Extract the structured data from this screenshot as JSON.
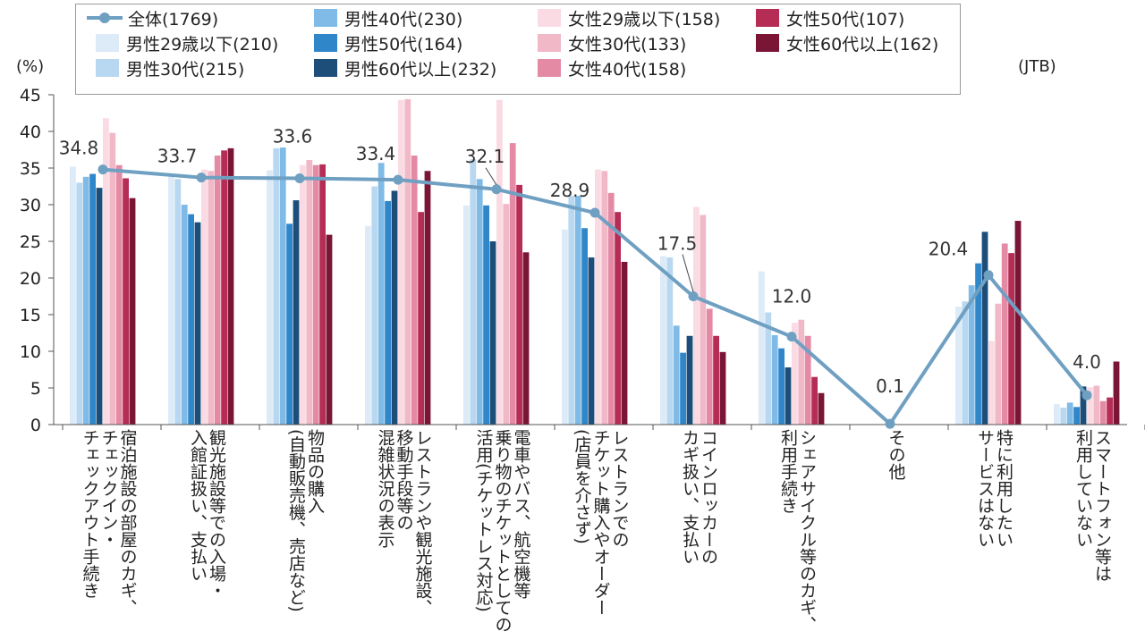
{
  "units": {
    "left": "(%)",
    "right": "(JTB)"
  },
  "legend": [
    {
      "label": "全体(1769)",
      "kind": "line",
      "color": "#6fa0c2"
    },
    {
      "label": "男性29歳以下(210)",
      "kind": "bar",
      "color": "#dcebf7"
    },
    {
      "label": "男性30代(215)",
      "kind": "bar",
      "color": "#b8d7f0"
    },
    {
      "label": "男性40代(230)",
      "kind": "bar",
      "color": "#7fbbe6"
    },
    {
      "label": "男性50代(164)",
      "kind": "bar",
      "color": "#2f86c9"
    },
    {
      "label": "男性60代以上(232)",
      "kind": "bar",
      "color": "#1c4e79"
    },
    {
      "label": "女性29歳以下(158)",
      "kind": "bar",
      "color": "#fadbe3"
    },
    {
      "label": "女性30代(133)",
      "kind": "bar",
      "color": "#f1b8c8"
    },
    {
      "label": "女性40代(158)",
      "kind": "bar",
      "color": "#e58aa5"
    },
    {
      "label": "女性50代(107)",
      "kind": "bar",
      "color": "#b52c55"
    },
    {
      "label": "女性60代以上(162)",
      "kind": "bar",
      "color": "#7b1535"
    }
  ],
  "chart_data": {
    "type": "bar",
    "ylim": [
      0,
      45
    ],
    "yticks": [
      "0",
      "5",
      "10",
      "15",
      "20",
      "25",
      "30",
      "35",
      "40",
      "45"
    ],
    "categories": [
      [
        "宿泊施設の部屋のカギ、",
        "チェックイン・",
        "チェックアウト手続き"
      ],
      [
        "観光施設等での入場・",
        "入館証扱い、支払い"
      ],
      [
        "物品の購入",
        "(自動販売機、売店など)"
      ],
      [
        "レストランや観光施設、",
        "移動手段等の",
        "混雑状況の表示"
      ],
      [
        "電車やバス、航空機等",
        "乗り物のチケットとしての",
        "活用(チケットレス対応)"
      ],
      [
        "レストランでの",
        "チケット購入やオーダー",
        "(店員を介さず)"
      ],
      [
        "コインロッカーの",
        "カギ扱い、支払い"
      ],
      [
        "シェアサイクル等のカギ、",
        "利用手続き"
      ],
      [
        "その他"
      ],
      [
        "特に利用したい",
        "サービスはない"
      ],
      [
        "スマートフォン等は",
        "利用していない"
      ]
    ],
    "series": [
      {
        "name": "男性29歳以下(210)",
        "values": [
          35.2,
          33.9,
          34.7,
          27.1,
          29.9,
          26.6,
          23.0,
          20.9,
          0,
          16.1,
          2.8
        ]
      },
      {
        "name": "男性30代(215)",
        "values": [
          33.0,
          33.5,
          37.7,
          32.5,
          36.2,
          31.2,
          22.8,
          15.3,
          0,
          16.8,
          2.3
        ]
      },
      {
        "name": "男性40代(230)",
        "values": [
          33.8,
          30.0,
          37.8,
          35.7,
          33.5,
          31.2,
          13.5,
          12.2,
          0,
          19.0,
          3.0
        ]
      },
      {
        "name": "男性50代(164)",
        "values": [
          34.2,
          28.7,
          27.4,
          30.5,
          29.9,
          26.8,
          9.8,
          10.4,
          0,
          22.0,
          2.4
        ]
      },
      {
        "name": "男性60代以上(232)",
        "values": [
          32.3,
          27.6,
          30.6,
          31.9,
          25.0,
          22.8,
          12.1,
          7.8,
          0,
          26.3,
          5.2
        ]
      },
      {
        "name": "女性29歳以下(158)",
        "values": [
          41.8,
          34.8,
          35.4,
          44.3,
          44.3,
          34.8,
          29.7,
          13.9,
          0,
          11.4,
          5.1
        ]
      },
      {
        "name": "女性30代(133)",
        "values": [
          39.8,
          34.6,
          36.1,
          44.4,
          30.1,
          34.6,
          28.6,
          14.3,
          0,
          16.5,
          5.3
        ]
      },
      {
        "name": "女性40代(158)",
        "values": [
          35.4,
          36.7,
          35.4,
          36.7,
          38.4,
          31.6,
          15.8,
          12.1,
          0,
          24.7,
          3.2
        ]
      },
      {
        "name": "女性50代(107)",
        "values": [
          33.6,
          37.4,
          35.5,
          29.0,
          32.7,
          29.0,
          12.1,
          6.5,
          0,
          23.4,
          3.7
        ]
      },
      {
        "name": "女性60代以上(162)",
        "values": [
          30.9,
          37.7,
          25.9,
          34.6,
          23.5,
          22.2,
          9.9,
          4.3,
          0,
          27.8,
          8.6
        ]
      }
    ],
    "line": {
      "name": "全体(1769)",
      "values": [
        34.8,
        33.7,
        33.6,
        33.4,
        32.1,
        28.9,
        17.5,
        12.0,
        0.1,
        20.4,
        4.0
      ],
      "labels": [
        "34.8",
        "33.7",
        "33.6",
        "33.4",
        "32.1",
        "28.9",
        "17.5",
        "12.0",
        "0.1",
        "20.4",
        "4.0"
      ]
    }
  }
}
